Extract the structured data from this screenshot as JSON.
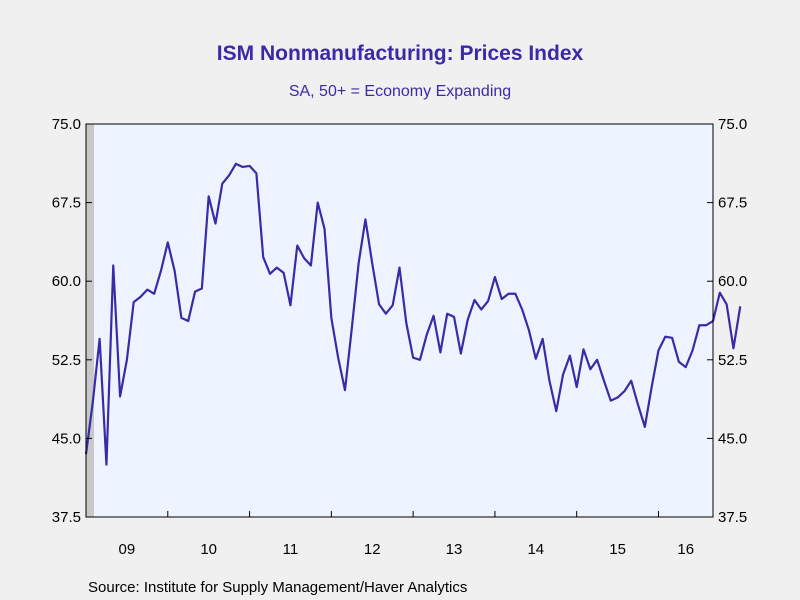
{
  "chart_data": {
    "type": "line",
    "title": "ISM Nonmanufacturing: Prices Index",
    "subtitle": "SA, 50+ = Economy Expanding",
    "source": "Source:  Institute for Supply Management/Haver Analytics",
    "ylim": [
      37.5,
      75.0
    ],
    "y_ticks": [
      "75.0",
      "67.5",
      "60.0",
      "52.5",
      "45.0",
      "37.5"
    ],
    "x_tick_labels": [
      "09",
      "10",
      "11",
      "12",
      "13",
      "14",
      "15",
      "16"
    ],
    "grid": false,
    "shaded_period": {
      "start": "2009-01",
      "end": "2009-06",
      "color": "#c8c8c8"
    },
    "colors": {
      "line": "#3a2aa8",
      "plot_bg": "#eef4ff",
      "page_bg": "#f0f0f0"
    },
    "series": [
      {
        "x_start": "2009-01",
        "frequency": "monthly",
        "values": [
          43.5,
          48.5,
          54.5,
          42.5,
          61.5,
          49.0,
          52.5,
          58.0,
          58.5,
          59.2,
          58.8,
          61.0,
          63.7,
          61.0,
          56.5,
          56.2,
          59.0,
          59.3,
          68.1,
          65.5,
          69.3,
          70.1,
          71.2,
          70.9,
          71.0,
          70.3,
          62.3,
          60.7,
          61.3,
          60.8,
          57.7,
          63.4,
          62.2,
          61.5,
          67.5,
          65.0,
          56.5,
          52.7,
          49.6,
          55.5,
          61.7,
          65.9,
          61.7,
          57.8,
          56.9,
          57.7,
          61.3,
          56.0,
          52.7,
          52.5,
          54.9,
          56.7,
          53.2,
          56.9,
          56.6,
          53.1,
          56.3,
          58.2,
          57.3,
          58.1,
          60.4,
          58.3,
          58.8,
          58.8,
          57.3,
          55.3,
          52.6,
          54.5,
          50.5,
          47.6,
          51.1,
          52.9,
          49.9,
          53.5,
          51.6,
          52.5,
          50.5,
          48.6,
          48.9,
          49.5,
          50.5,
          48.2,
          46.1,
          49.9,
          53.4,
          54.7,
          54.6,
          52.3,
          51.8,
          53.4,
          55.8,
          55.8,
          56.2,
          58.9,
          57.8,
          53.6,
          57.6
        ]
      }
    ]
  }
}
